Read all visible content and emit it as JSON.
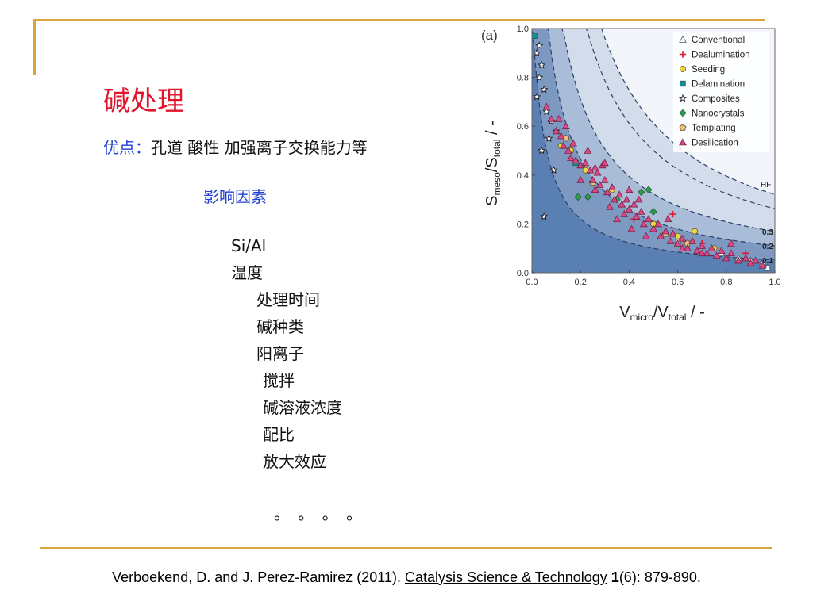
{
  "slide": {
    "title": "碱处理",
    "advantages_label": "优点：",
    "advantages_text": "孔道 酸性 加强离子交换能力等",
    "factors_heading": "影响因素",
    "factors": [
      "Si/Al",
      "温度",
      "处理时间",
      "碱种类",
      "阳离子",
      "搅拌",
      "碱溶液浓度",
      "配比",
      "放大效应"
    ],
    "ellipsis": "。 。 。 。",
    "citation": {
      "prefix": "Verboekend, D. and J. Perez-Ramirez (2011). ",
      "journal": "Catalysis Science & Technology",
      "volume": "1",
      "suffix": "(6): 879-890."
    },
    "accent_color": "#d9a43a",
    "title_color": "#e0142c",
    "blue_text_color": "#1f3fd6"
  },
  "chart_data": {
    "type": "scatter",
    "panel_label": "(a)",
    "ylabel_main": "S",
    "ylabel_sub1": "meso",
    "ylabel_mid": "/S",
    "ylabel_sub2": "total",
    "ylabel_unit": " / -",
    "xlabel_main": "V",
    "xlabel_sub1": "micro",
    "xlabel_mid": "/V",
    "xlabel_sub2": "total",
    "xlabel_unit": " / -",
    "xlim": [
      0,
      1
    ],
    "ylim": [
      0,
      1
    ],
    "x_ticks": [
      "0.0",
      "0.2",
      "0.4",
      "0.6",
      "0.8",
      "1.0"
    ],
    "y_ticks": [
      "0.0",
      "0.2",
      "0.4",
      "0.6",
      "0.8",
      "1.0"
    ],
    "hf_label": "HF",
    "hf_contours": [
      {
        "label": "0.3",
        "k": 0.29
      },
      {
        "label": "0.2",
        "k": 0.19
      },
      {
        "label": "0.1",
        "k": 0.09
      }
    ],
    "legend_position": "top-right",
    "series": [
      {
        "name": "Conventional",
        "marker": "triangle-open",
        "color": "#555555",
        "points": [
          [
            0.95,
            0.04
          ],
          [
            0.9,
            0.05
          ],
          [
            0.85,
            0.06
          ],
          [
            0.97,
            0.02
          ],
          [
            0.78,
            0.08
          ],
          [
            0.6,
            0.13
          ]
        ]
      },
      {
        "name": "Dealumination",
        "marker": "plus",
        "color": "#e0142c",
        "points": [
          [
            0.58,
            0.24
          ],
          [
            0.88,
            0.08
          ],
          [
            0.42,
            0.22
          ],
          [
            0.7,
            0.12
          ]
        ]
      },
      {
        "name": "Seeding",
        "marker": "circle",
        "color": "#e8d84a",
        "points": [
          [
            0.12,
            0.52
          ],
          [
            0.22,
            0.42
          ],
          [
            0.33,
            0.34
          ],
          [
            0.5,
            0.2
          ],
          [
            0.6,
            0.15
          ],
          [
            0.67,
            0.17
          ],
          [
            0.75,
            0.1
          ],
          [
            0.16,
            0.5
          ]
        ]
      },
      {
        "name": "Delamination",
        "marker": "square",
        "color": "#1a8c8c",
        "points": [
          [
            0.01,
            0.97
          ],
          [
            0.18,
            0.45
          ]
        ]
      },
      {
        "name": "Composites",
        "marker": "star-open",
        "color": "#222222",
        "points": [
          [
            0.02,
            0.9
          ],
          [
            0.04,
            0.85
          ],
          [
            0.03,
            0.8
          ],
          [
            0.05,
            0.75
          ],
          [
            0.02,
            0.72
          ],
          [
            0.06,
            0.66
          ],
          [
            0.08,
            0.62
          ],
          [
            0.07,
            0.55
          ],
          [
            0.04,
            0.5
          ],
          [
            0.09,
            0.42
          ],
          [
            0.05,
            0.23
          ],
          [
            0.1,
            0.58
          ],
          [
            0.03,
            0.93
          ]
        ]
      },
      {
        "name": "Nanocrystals",
        "marker": "diamond",
        "color": "#2e9a4a",
        "points": [
          [
            0.19,
            0.31
          ],
          [
            0.23,
            0.31
          ],
          [
            0.45,
            0.33
          ],
          [
            0.48,
            0.34
          ],
          [
            0.5,
            0.25
          ],
          [
            0.35,
            0.3
          ]
        ]
      },
      {
        "name": "Templating",
        "marker": "pentagon",
        "color": "#e8c08a",
        "points": [
          [
            0.14,
            0.55
          ],
          [
            0.25,
            0.37
          ],
          [
            0.55,
            0.16
          ],
          [
            0.64,
            0.12
          ]
        ]
      },
      {
        "name": "Desilication",
        "marker": "triangle",
        "color": "#d94a86",
        "points": [
          [
            0.06,
            0.68
          ],
          [
            0.08,
            0.63
          ],
          [
            0.1,
            0.58
          ],
          [
            0.12,
            0.56
          ],
          [
            0.13,
            0.52
          ],
          [
            0.15,
            0.5
          ],
          [
            0.16,
            0.47
          ],
          [
            0.18,
            0.46
          ],
          [
            0.2,
            0.44
          ],
          [
            0.22,
            0.45
          ],
          [
            0.24,
            0.42
          ],
          [
            0.25,
            0.38
          ],
          [
            0.27,
            0.41
          ],
          [
            0.28,
            0.36
          ],
          [
            0.3,
            0.38
          ],
          [
            0.31,
            0.33
          ],
          [
            0.33,
            0.35
          ],
          [
            0.34,
            0.3
          ],
          [
            0.36,
            0.32
          ],
          [
            0.37,
            0.28
          ],
          [
            0.39,
            0.3
          ],
          [
            0.4,
            0.26
          ],
          [
            0.42,
            0.28
          ],
          [
            0.43,
            0.23
          ],
          [
            0.45,
            0.25
          ],
          [
            0.46,
            0.2
          ],
          [
            0.48,
            0.22
          ],
          [
            0.5,
            0.18
          ],
          [
            0.52,
            0.2
          ],
          [
            0.53,
            0.15
          ],
          [
            0.55,
            0.17
          ],
          [
            0.57,
            0.13
          ],
          [
            0.58,
            0.16
          ],
          [
            0.6,
            0.12
          ],
          [
            0.62,
            0.14
          ],
          [
            0.64,
            0.1
          ],
          [
            0.66,
            0.13
          ],
          [
            0.68,
            0.09
          ],
          [
            0.7,
            0.11
          ],
          [
            0.72,
            0.08
          ],
          [
            0.74,
            0.1
          ],
          [
            0.76,
            0.07
          ],
          [
            0.78,
            0.09
          ],
          [
            0.8,
            0.06
          ],
          [
            0.82,
            0.08
          ],
          [
            0.85,
            0.05
          ],
          [
            0.88,
            0.06
          ],
          [
            0.9,
            0.04
          ],
          [
            0.92,
            0.05
          ],
          [
            0.95,
            0.03
          ],
          [
            0.2,
            0.38
          ],
          [
            0.26,
            0.43
          ],
          [
            0.32,
            0.27
          ],
          [
            0.38,
            0.24
          ],
          [
            0.44,
            0.3
          ],
          [
            0.29,
            0.44
          ],
          [
            0.35,
            0.22
          ],
          [
            0.41,
            0.18
          ],
          [
            0.23,
            0.5
          ],
          [
            0.14,
            0.6
          ],
          [
            0.11,
            0.63
          ],
          [
            0.17,
            0.53
          ],
          [
            0.3,
            0.45
          ],
          [
            0.47,
            0.15
          ],
          [
            0.56,
            0.22
          ],
          [
            0.62,
            0.1
          ],
          [
            0.7,
            0.08
          ],
          [
            0.82,
            0.12
          ],
          [
            0.4,
            0.34
          ],
          [
            0.26,
            0.34
          ]
        ]
      }
    ]
  }
}
